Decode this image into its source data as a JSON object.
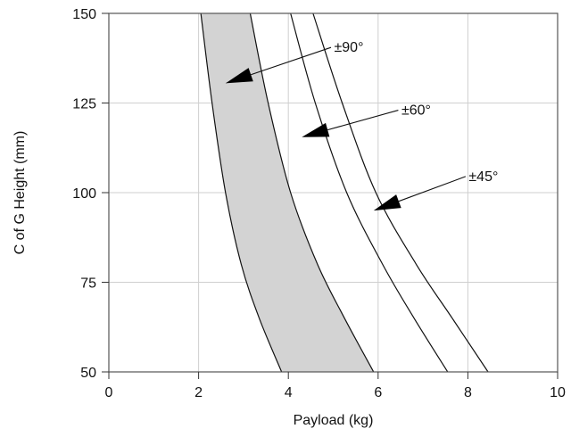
{
  "chart_data": {
    "type": "line",
    "title": "",
    "xlabel": "Payload (kg)",
    "ylabel": "C of G Height (mm)",
    "xlim": [
      0,
      10
    ],
    "ylim": [
      50,
      150
    ],
    "xticks": [
      0,
      2,
      4,
      6,
      8,
      10
    ],
    "yticks": [
      50,
      75,
      100,
      125,
      150
    ],
    "xtick_labels": [
      "0",
      "2",
      "4",
      "6",
      "8",
      "10"
    ],
    "ytick_labels": [
      "50",
      "75",
      "100",
      "125",
      "150"
    ],
    "grid": true,
    "fill_between": {
      "lower": "±90° inner",
      "upper": "±90° outer",
      "color": "#d3d3d3"
    },
    "series": [
      {
        "id": "90-inner",
        "x": [
          2.05,
          2.3,
          2.6,
          2.95,
          3.35,
          3.85
        ],
        "y": [
          150,
          125,
          100,
          80,
          65,
          50
        ]
      },
      {
        "id": "90-outer",
        "x": [
          3.15,
          3.55,
          4.05,
          4.65,
          5.25,
          5.9
        ],
        "y": [
          150,
          125,
          100,
          80,
          65,
          50
        ]
      },
      {
        "id": "60",
        "x": [
          4.05,
          4.6,
          5.3,
          6.1,
          6.8,
          7.55
        ],
        "y": [
          150,
          125,
          100,
          80,
          65,
          50
        ]
      },
      {
        "id": "45",
        "x": [
          4.55,
          5.2,
          5.95,
          6.85,
          7.65,
          8.45
        ],
        "y": [
          150,
          125,
          100,
          80,
          65,
          50
        ]
      }
    ],
    "annotations": [
      {
        "text": "±90°",
        "label_at": [
          5.0,
          140.5
        ],
        "arrow_from": [
          4.95,
          140.5
        ],
        "arrow_to": [
          2.6,
          130.5
        ]
      },
      {
        "text": "±60°",
        "label_at": [
          6.5,
          123.0
        ],
        "arrow_from": [
          6.45,
          123.0
        ],
        "arrow_to": [
          4.3,
          115.5
        ]
      },
      {
        "text": "±45°",
        "label_at": [
          8.0,
          104.5
        ],
        "arrow_from": [
          7.95,
          104.5
        ],
        "arrow_to": [
          5.9,
          95.0
        ]
      }
    ]
  }
}
